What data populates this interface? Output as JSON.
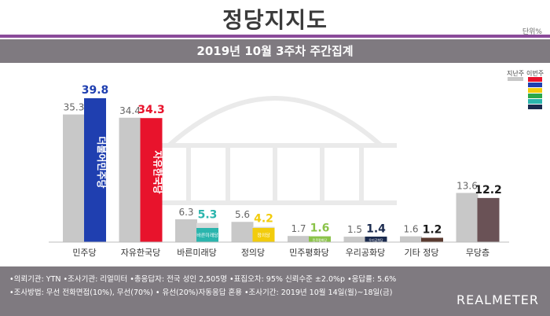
{
  "header": {
    "title": "정당지지도",
    "unit": "단위%",
    "subtitle": "2019년 10월 3주차 주간집계"
  },
  "legend": {
    "prev_label": "지난주",
    "curr_label": "이번주",
    "prev_color": "#c8c8c8",
    "curr_swatches": [
      "#e8132c",
      "#1f3fb0",
      "#f2cc0c",
      "#2ba84a",
      "#2bb5ad",
      "#1a2a4e"
    ]
  },
  "chart_data": {
    "type": "bar",
    "categories": [
      "민주당",
      "자유한국당",
      "바른미래당",
      "정의당",
      "민주평화당",
      "우리공화당",
      "기타 정당",
      "무당층"
    ],
    "series": [
      {
        "name": "지난주",
        "values": [
          35.3,
          34.4,
          6.3,
          5.6,
          1.7,
          1.5,
          1.6,
          13.6
        ]
      },
      {
        "name": "이번주",
        "values": [
          39.8,
          34.3,
          5.3,
          4.2,
          1.6,
          1.4,
          1.2,
          12.2
        ]
      }
    ],
    "current_colors": [
      "#1f3fb0",
      "#e8132c",
      "#2bb5ad",
      "#f2cc0c",
      "#8bc34a",
      "#1a2a4e",
      "#5a3a30",
      "#6a5256"
    ],
    "label_colors": [
      "#1f3fb0",
      "#e8132c",
      "#2bb5ad",
      "#f2cc0c",
      "#8bc34a",
      "#1a2a4e",
      "#1a1a1a",
      "#1a1a1a"
    ],
    "logo_texts": [
      "더불어민주당",
      "자유한국당",
      "바른미래당",
      "정의당",
      "민주평화당",
      "우리공화당"
    ],
    "ylim": [
      0,
      40
    ]
  },
  "footer": {
    "line1": "•의뢰기관: YTN  •조사기관: 리얼미터  •총응답자: 전국 성인 2,505명  •표집오차: 95% 신뢰수준 ±2.0%p  •응답률: 5.6%",
    "line2": "•조사방법: 무선 전화면접(10%), 무선(70%) • 유선(20%)자동응답 혼용  •조사기간: 2019년 10월 14일(월)~18일(금)",
    "brand": "REALMETER"
  }
}
